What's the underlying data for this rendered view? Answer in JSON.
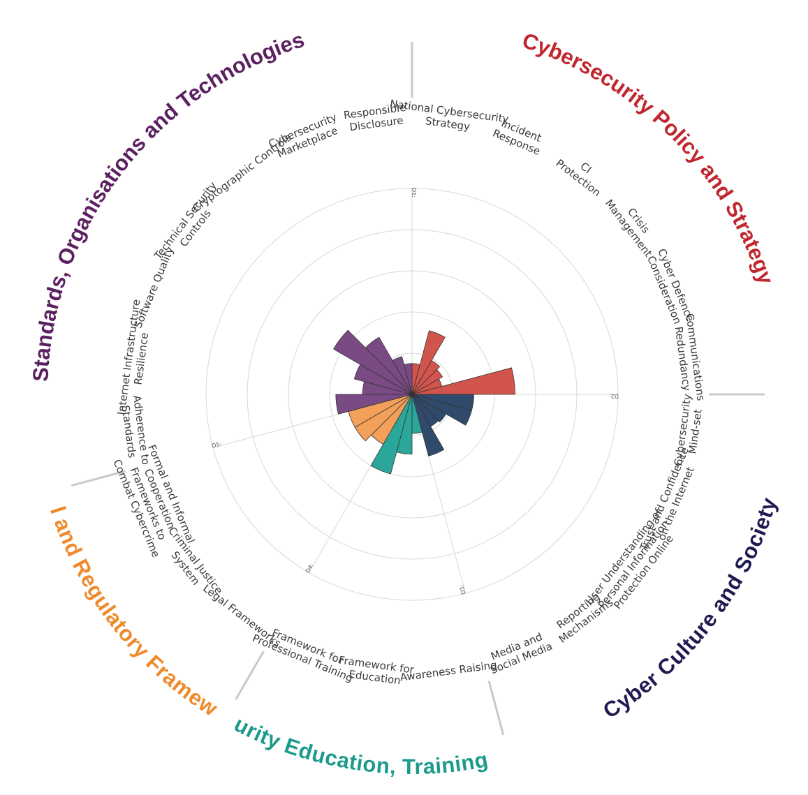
{
  "chart_data": {
    "type": "polar_bar",
    "stages_max": 5,
    "dimensions": [
      {
        "id": "D1",
        "tick": "D1:",
        "title": "Cybersecurity Policy and Strategy",
        "color": "#D2554D",
        "title_color": "#C0262D",
        "items": [
          {
            "label": [
              "National Cybersecurity",
              "Strategy"
            ],
            "value": 0.75
          },
          {
            "label": [
              "Incident",
              "Response"
            ],
            "value": 1.6
          },
          {
            "label": [
              "CI",
              "Protection"
            ],
            "value": 0.95
          },
          {
            "label": [
              "Crisis",
              "Management"
            ],
            "value": 0.85
          },
          {
            "label": [
              "Cyber Defence",
              "Consideration"
            ],
            "value": 0.75
          },
          {
            "label": [
              "Communications",
              "Redundancy"
            ],
            "value": 2.5
          }
        ]
      },
      {
        "id": "D2",
        "tick": "D2:",
        "title": "Cyber Culture and Society",
        "color": "#2F4A6B",
        "title_color": "#1F1A4F",
        "items": [
          {
            "label": [
              "Cybersecurity",
              "Mind-set"
            ],
            "value": 1.5
          },
          {
            "label": [
              "Trust and Confidence",
              "on the Internet"
            ],
            "value": 1.5
          },
          {
            "label": [
              "User Understanding of",
              "Personal Information",
              "Protection Online"
            ],
            "value": 0.95
          },
          {
            "label": [
              "Reporting",
              "Mechanisms"
            ],
            "value": 0.9
          },
          {
            "label": [
              "Media and",
              "Social Media"
            ],
            "value": 1.55
          }
        ]
      },
      {
        "id": "D3",
        "tick": "D3:",
        "title": "Cybersecurity Education, Training and Skills",
        "color": "#2AA79A",
        "title_color": "#1C9A8C",
        "items": [
          {
            "label": [
              "Awareness Raising"
            ],
            "value": 0.95
          },
          {
            "label": [
              "Framework for",
              "Education"
            ],
            "value": 1.45
          },
          {
            "label": [
              "Framework for",
              "Professional Training"
            ],
            "value": 2.0
          }
        ]
      },
      {
        "id": "D4",
        "tick": "D4:",
        "title": "Legal and Regulatory Frameworks",
        "color": "#F2A05A",
        "title_color": "#EF8A2B",
        "items": [
          {
            "label": [
              "Legal Frameworks"
            ],
            "value": 1.4
          },
          {
            "label": [
              "Criminal Justice",
              "System"
            ],
            "value": 1.6
          },
          {
            "label": [
              "Formal and Informal",
              "Cooperation",
              "Frameworks to",
              "Combat Cybercrime"
            ],
            "value": 1.6
          }
        ]
      },
      {
        "id": "D5",
        "tick": "D5:",
        "title": "Standards, Organisations and Technologies",
        "color": "#7A4A84",
        "title_color": "#5B2060",
        "items": [
          {
            "label": [
              "Adherence to",
              "Standards"
            ],
            "value": 1.85
          },
          {
            "label": [
              "Internet Infrastructure",
              "Resilience"
            ],
            "value": 1.2
          },
          {
            "label": [
              "Software Quality"
            ],
            "value": 1.45
          },
          {
            "label": [
              "Technical Security",
              "Controls"
            ],
            "value": 2.2
          },
          {
            "label": [
              "Cryptographic Controls"
            ],
            "value": 1.6
          },
          {
            "label": [
              "Cybersecurity",
              "Marketplace"
            ],
            "value": 0.95
          },
          {
            "label": [
              "Responsible",
              "Disclosure"
            ],
            "value": 0.75
          }
        ]
      }
    ]
  }
}
